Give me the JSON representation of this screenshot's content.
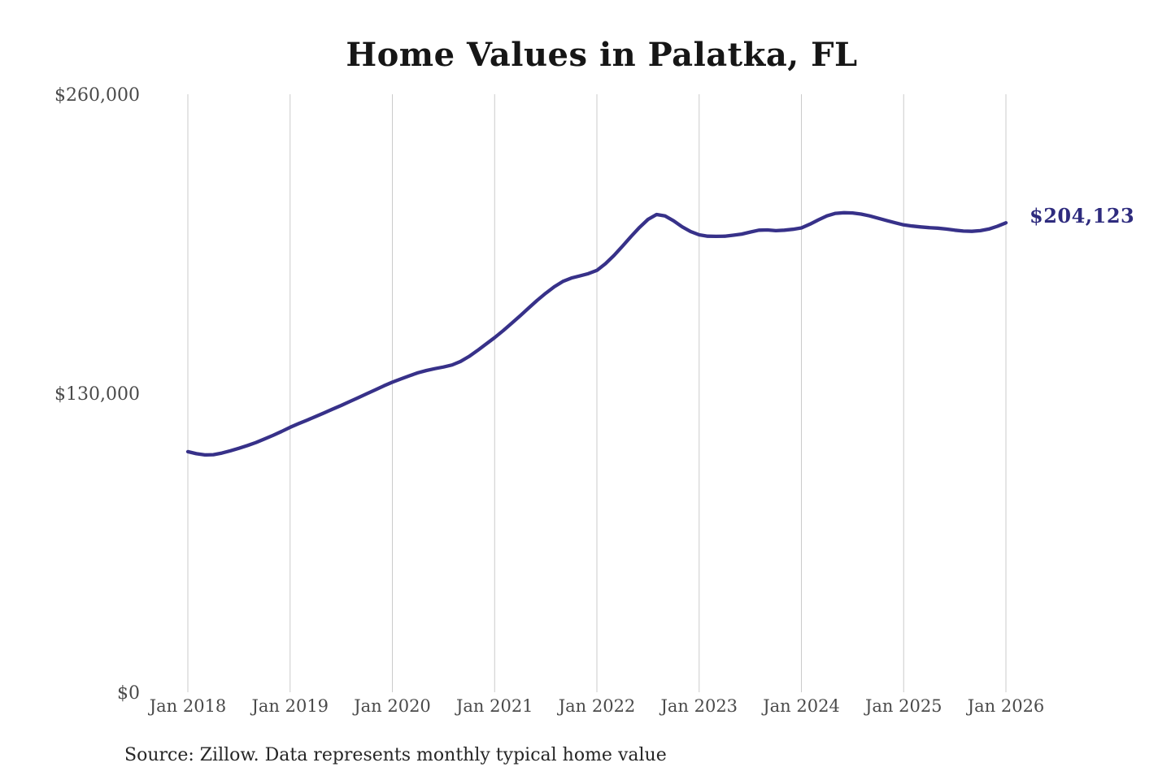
{
  "title": "Home Values in Palatka, FL",
  "source_note": "Source: Zillow. Data represents monthly typical home value",
  "annotation": {
    "final_value_label": "$204,123"
  },
  "colors": {
    "line": "#373189",
    "annotation": "#2e2b7e",
    "gridline": "#cbcbcb",
    "axis_text": "#4a4a4a",
    "title_text": "#161616",
    "source_text": "#262626"
  },
  "chart_data": {
    "type": "line",
    "title": "Home Values in Palatka, FL",
    "xlabel": "",
    "ylabel": "",
    "ylim": [
      0,
      260000
    ],
    "y_ticks": [
      0,
      130000,
      260000
    ],
    "y_tick_labels": [
      "$0",
      "$130,000",
      "$260,000"
    ],
    "x_tick_labels": [
      "Jan 2018",
      "Jan 2019",
      "Jan 2020",
      "Jan 2021",
      "Jan 2022",
      "Jan 2023",
      "Jan 2024",
      "Jan 2025",
      "Jan 2026"
    ],
    "grid": "vertical-only",
    "legend": "none",
    "frequency": "monthly",
    "x_start": "2018-01",
    "x_end": "2026-01",
    "final_value": 204123,
    "final_value_label": "$204,123",
    "series": [
      {
        "name": "Typical home value",
        "values": [
          104600,
          103700,
          103200,
          103300,
          104000,
          105000,
          106100,
          107300,
          108600,
          110100,
          111700,
          113400,
          115200,
          116800,
          118300,
          119900,
          121500,
          123100,
          124700,
          126400,
          128100,
          129800,
          131500,
          133200,
          134800,
          136200,
          137600,
          138900,
          139900,
          140700,
          141400,
          142300,
          143800,
          146000,
          148600,
          151400,
          154200,
          157200,
          160400,
          163700,
          167100,
          170400,
          173500,
          176300,
          178600,
          180100,
          181000,
          182000,
          183400,
          186300,
          189900,
          193900,
          198100,
          202100,
          205600,
          207700,
          207100,
          205000,
          202400,
          200300,
          198900,
          198300,
          198200,
          198300,
          198700,
          199200,
          200100,
          200900,
          201000,
          200700,
          200900,
          201300,
          201900,
          203500,
          205400,
          207100,
          208200,
          208500,
          208400,
          207900,
          207100,
          206100,
          205100,
          204100,
          203200,
          202700,
          202300,
          202000,
          201800,
          201400,
          200900,
          200500,
          200400,
          200700,
          201400,
          202600,
          204123
        ]
      }
    ]
  }
}
